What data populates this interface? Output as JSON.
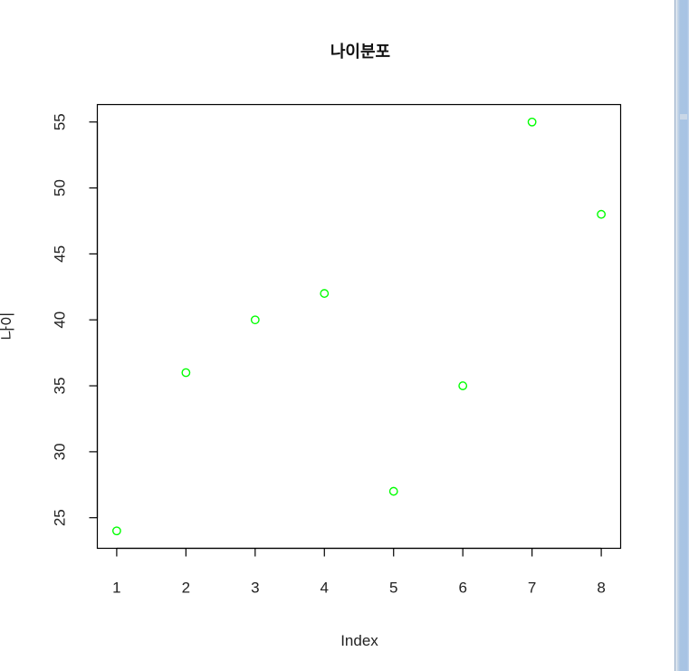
{
  "chart_data": {
    "type": "scatter",
    "title": "나이분포",
    "xlabel": "Index",
    "ylabel": "나이",
    "x": [
      1,
      2,
      3,
      4,
      5,
      6,
      7,
      8
    ],
    "y": [
      24,
      36,
      40,
      42,
      27,
      35,
      55,
      48
    ],
    "xticks": [
      1,
      2,
      3,
      4,
      5,
      6,
      7,
      8
    ],
    "yticks": [
      25,
      30,
      35,
      40,
      45,
      50,
      55
    ],
    "xlim": [
      0.72,
      8.28
    ],
    "ylim": [
      22.68,
      56.32
    ],
    "point_color": "#00ff00",
    "point_shape": "open-circle",
    "grid": false,
    "legend": "none"
  }
}
